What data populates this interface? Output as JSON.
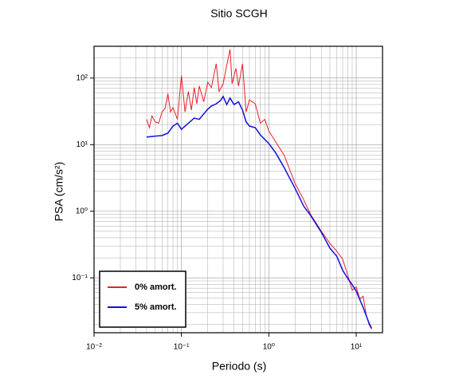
{
  "chart_data": {
    "type": "line",
    "title": "Sitio SCGH",
    "x_label": "Periodo (s)",
    "y_label": "PSA (cm/s²)",
    "log_x": true,
    "log_y": true,
    "grid": true,
    "legend_position": "lower left",
    "xlim": [
      0.01,
      20
    ],
    "ylim": [
      0.015,
      300
    ],
    "xticks": [
      {
        "value": 0.01,
        "label": "10⁻²"
      },
      {
        "value": 0.1,
        "label": "10⁻¹"
      },
      {
        "value": 1,
        "label": "10⁰"
      },
      {
        "value": 10,
        "label": "10¹"
      }
    ],
    "yticks": [
      {
        "value": 0.1,
        "label": "10⁻¹"
      },
      {
        "value": 1,
        "label": "10⁰"
      },
      {
        "value": 10,
        "label": "10¹"
      },
      {
        "value": 100,
        "label": "10²"
      }
    ],
    "xminorticks": [
      0.02,
      0.03,
      0.04,
      0.05,
      0.06,
      0.07,
      0.08,
      0.09,
      0.2,
      0.3,
      0.4,
      0.5,
      0.6,
      0.7,
      0.8,
      0.9,
      2,
      3,
      4,
      5,
      6,
      7,
      8,
      9
    ],
    "yminorticks": [
      0.02,
      0.03,
      0.04,
      0.05,
      0.06,
      0.07,
      0.08,
      0.09,
      0.2,
      0.3,
      0.4,
      0.5,
      0.6,
      0.7,
      0.8,
      0.9,
      2,
      3,
      4,
      5,
      6,
      7,
      8,
      9,
      20,
      30,
      40,
      50,
      60,
      70,
      80,
      90,
      200
    ],
    "series": [
      {
        "name": "0% amort.",
        "color": "#e8202a",
        "x": [
          0.04,
          0.043,
          0.046,
          0.05,
          0.055,
          0.06,
          0.065,
          0.07,
          0.075,
          0.08,
          0.09,
          0.1,
          0.11,
          0.12,
          0.13,
          0.14,
          0.15,
          0.16,
          0.18,
          0.2,
          0.22,
          0.25,
          0.27,
          0.3,
          0.33,
          0.36,
          0.38,
          0.4,
          0.42,
          0.45,
          0.5,
          0.55,
          0.6,
          0.7,
          0.8,
          0.9,
          1,
          1.2,
          1.5,
          2,
          2.5,
          3,
          4,
          5,
          6,
          7,
          8,
          9,
          10,
          11,
          12,
          13,
          14,
          15
        ],
        "values": [
          24,
          18,
          27,
          22,
          21,
          31,
          35,
          58,
          31,
          36,
          24,
          109,
          31,
          63,
          33,
          72,
          41,
          76,
          44,
          87,
          72,
          164,
          63,
          82,
          155,
          270,
          82,
          109,
          140,
          76,
          164,
          31,
          47,
          41,
          21,
          24,
          16,
          11,
          6.9,
          2.6,
          1.5,
          0.9,
          0.5,
          0.33,
          0.25,
          0.19,
          0.11,
          0.065,
          0.073,
          0.048,
          0.053,
          0.028,
          0.02,
          0.017
        ]
      },
      {
        "name": "5% amort.",
        "color": "#1010e0",
        "x": [
          0.04,
          0.05,
          0.06,
          0.07,
          0.08,
          0.09,
          0.1,
          0.11,
          0.12,
          0.14,
          0.16,
          0.18,
          0.2,
          0.22,
          0.25,
          0.28,
          0.3,
          0.33,
          0.36,
          0.4,
          0.45,
          0.5,
          0.55,
          0.6,
          0.7,
          0.8,
          1,
          1.2,
          1.5,
          2,
          2.5,
          3,
          4,
          5,
          6,
          7,
          8,
          9,
          10,
          12,
          14,
          15
        ],
        "values": [
          13,
          13.4,
          13.7,
          14.9,
          19,
          21,
          17,
          19,
          21,
          25,
          24,
          29,
          34,
          38,
          41,
          46,
          53,
          40,
          50,
          40,
          44,
          33,
          22,
          19,
          18,
          14,
          10.4,
          7.5,
          4.5,
          2.2,
          1.2,
          0.87,
          0.48,
          0.28,
          0.21,
          0.13,
          0.098,
          0.079,
          0.063,
          0.036,
          0.021,
          0.0175
        ]
      }
    ]
  }
}
